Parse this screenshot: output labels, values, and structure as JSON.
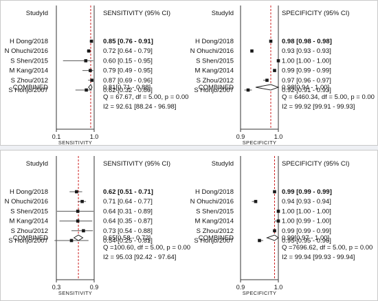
{
  "colors": {
    "ref_line": "#cc1f1f",
    "marker": "#1a1a1a",
    "text": "#111111"
  },
  "chart_data": [
    {
      "type": "forest",
      "column_header": "StudyId",
      "stat_header": "SENSITIVITY (95% CI)",
      "xlabel": "SENSITIVITY",
      "x_scale": "log",
      "xlim": [
        0.1,
        1.0
      ],
      "xticks": [
        "0.1",
        "1.0"
      ],
      "studies": [
        {
          "name": "H Dong/2018",
          "estimate": 0.85,
          "lower": 0.76,
          "upper": 0.91,
          "text": "0.85 [0.76 - 0.91]",
          "bold": true
        },
        {
          "name": "N Ohuchi/2016",
          "estimate": 0.72,
          "lower": 0.64,
          "upper": 0.79,
          "text": "0.72 [0.64 - 0.79]",
          "bold": false
        },
        {
          "name": "S Shen/2015",
          "estimate": 0.6,
          "lower": 0.15,
          "upper": 0.95,
          "text": "0.60 [0.15 - 0.95]",
          "bold": false
        },
        {
          "name": "M Kang/2014",
          "estimate": 0.79,
          "lower": 0.49,
          "upper": 0.95,
          "text": "0.79 [0.49 - 0.95]",
          "bold": false
        },
        {
          "name": "S Zhou/2012",
          "estimate": 0.87,
          "lower": 0.69,
          "upper": 0.96,
          "text": "0.87 [0.69 - 0.96]",
          "bold": false
        },
        {
          "name": "S Honjo/2007",
          "estimate": 0.62,
          "lower": 0.32,
          "upper": 0.86,
          "text": "0.62 [0.32 - 0.86]",
          "bold": false
        }
      ],
      "combined": {
        "label": "COMBINED",
        "estimate": 0.81,
        "lower": 0.71,
        "upper": 0.88,
        "text": "0.81[0.71 - 0.88]"
      },
      "q_text": "Q = 67.67, df = 5.00, p =  0.00",
      "i2_text": "I2 = 92.61 [88.24 - 96.98]"
    },
    {
      "type": "forest",
      "column_header": "StudyId",
      "stat_header": "SPECIFICITY (95% CI)",
      "xlabel": "SPECIFICITY",
      "x_scale": "linear",
      "xlim": [
        0.9,
        1.0
      ],
      "xticks": [
        "0.9",
        "1.0"
      ],
      "studies": [
        {
          "name": "H Dong/2018",
          "estimate": 0.98,
          "lower": 0.98,
          "upper": 0.98,
          "text": "0.98 [0.98 - 0.98]",
          "bold": true
        },
        {
          "name": "N Ohuchi/2016",
          "estimate": 0.93,
          "lower": 0.93,
          "upper": 0.93,
          "text": "0.93 [0.93 - 0.93]",
          "bold": false
        },
        {
          "name": "S Shen/2015",
          "estimate": 1.0,
          "lower": 1.0,
          "upper": 1.0,
          "text": "1.00 [1.00 - 1.00]",
          "bold": false
        },
        {
          "name": "M Kang/2014",
          "estimate": 0.99,
          "lower": 0.99,
          "upper": 0.99,
          "text": "0.99 [0.99 - 0.99]",
          "bold": false
        },
        {
          "name": "S Zhou/2012",
          "estimate": 0.97,
          "lower": 0.96,
          "upper": 0.97,
          "text": "0.97 [0.96 - 0.97]",
          "bold": false
        },
        {
          "name": "S Honjo/2007",
          "estimate": 0.92,
          "lower": 0.91,
          "upper": 0.93,
          "text": "0.92 [0.91 - 0.93]",
          "bold": false
        }
      ],
      "combined": {
        "label": "COMBINED",
        "estimate": 0.98,
        "lower": 0.94,
        "upper": 1.0,
        "text": "0.98[0.94 - 1.00]"
      },
      "q_text": "Q = 6460.34, df = 5.00, p =  0.00",
      "i2_text": "I2 = 99.92 [99.91 - 99.93]"
    },
    {
      "type": "forest",
      "column_header": "StudyId",
      "stat_header": "SENSITIVITY (95% CI)",
      "xlabel": "SENSITIVITY",
      "x_scale": "linear",
      "xlim": [
        0.3,
        0.9
      ],
      "xticks": [
        "0.3",
        "0.9"
      ],
      "studies": [
        {
          "name": "H Dong/2018",
          "estimate": 0.62,
          "lower": 0.51,
          "upper": 0.71,
          "text": "0.62 [0.51 - 0.71]",
          "bold": true
        },
        {
          "name": "N Ohuchi/2016",
          "estimate": 0.71,
          "lower": 0.64,
          "upper": 0.77,
          "text": "0.71 [0.64 - 0.77]",
          "bold": false
        },
        {
          "name": "S Shen/2015",
          "estimate": 0.64,
          "lower": 0.31,
          "upper": 0.89,
          "text": "0.64 [0.31 - 0.89]",
          "bold": false
        },
        {
          "name": "M Kang/2014",
          "estimate": 0.64,
          "lower": 0.35,
          "upper": 0.87,
          "text": "0.64 [0.35 - 0.87]",
          "bold": false
        },
        {
          "name": "S Zhou/2012",
          "estimate": 0.73,
          "lower": 0.54,
          "upper": 0.88,
          "text": "0.73 [0.54 - 0.88]",
          "bold": false
        },
        {
          "name": "S Honjo/2007",
          "estimate": 0.54,
          "lower": 0.25,
          "upper": 0.81,
          "text": "0.54 [0.25 - 0.81]",
          "bold": false
        }
      ],
      "combined": {
        "label": "COMBINED",
        "estimate": 0.65,
        "lower": 0.58,
        "upper": 0.72,
        "text": "0.65[0.58 - 0.72]"
      },
      "q_text": "Q =100.60, df = 5.00, p =  0.00",
      "i2_text": "I2 = 95.03 [92.42 - 97.64]"
    },
    {
      "type": "forest",
      "column_header": "StudyId",
      "stat_header": "SPECIFICITY (95% CI)",
      "xlabel": "SPECIFICITY",
      "x_scale": "linear",
      "xlim": [
        0.9,
        1.0
      ],
      "xticks": [
        "0.9",
        "1.0"
      ],
      "studies": [
        {
          "name": "H Dong/2018",
          "estimate": 0.99,
          "lower": 0.99,
          "upper": 0.99,
          "text": "0.99 [0.99 - 0.99]",
          "bold": true
        },
        {
          "name": "N Ohuchi/2016",
          "estimate": 0.94,
          "lower": 0.93,
          "upper": 0.94,
          "text": "0.94 [0.93 - 0.94]",
          "bold": false
        },
        {
          "name": "S Shen/2015",
          "estimate": 1.0,
          "lower": 1.0,
          "upper": 1.0,
          "text": "1.00 [1.00 - 1.00]",
          "bold": false
        },
        {
          "name": "M Kang/2014",
          "estimate": 1.0,
          "lower": 0.99,
          "upper": 1.0,
          "text": "1.00 [0.99 - 1.00]",
          "bold": false
        },
        {
          "name": "S Zhou/2012",
          "estimate": 0.99,
          "lower": 0.99,
          "upper": 0.99,
          "text": "0.99 [0.99 - 0.99]",
          "bold": false
        },
        {
          "name": "S Honjo/2007",
          "estimate": 0.95,
          "lower": 0.95,
          "upper": 0.96,
          "text": "0.95 [0.95 - 0.96]",
          "bold": false
        }
      ],
      "combined": {
        "label": "COMBINED",
        "estimate": 0.99,
        "lower": 0.97,
        "upper": 1.0,
        "text": "0.99[0.97 - 1.00]"
      },
      "q_text": "Q =7696.62, df = 5.00, p =  0.00",
      "i2_text": "I2 = 99.94 [99.93 - 99.94]"
    }
  ]
}
